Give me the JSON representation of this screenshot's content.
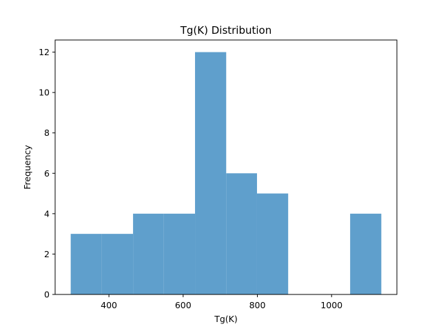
{
  "chart_data": {
    "type": "bar",
    "title": "Tg(K) Distribution",
    "xlabel": "Tg(K)",
    "ylabel": "Frequency",
    "bins": [
      {
        "start": 297,
        "end": 381,
        "count": 3
      },
      {
        "start": 381,
        "end": 465,
        "count": 3
      },
      {
        "start": 465,
        "end": 548,
        "count": 4
      },
      {
        "start": 548,
        "end": 632,
        "count": 4
      },
      {
        "start": 632,
        "end": 716,
        "count": 12
      },
      {
        "start": 716,
        "end": 799,
        "count": 6
      },
      {
        "start": 799,
        "end": 883,
        "count": 5
      },
      {
        "start": 883,
        "end": 967,
        "count": 0
      },
      {
        "start": 967,
        "end": 1050,
        "count": 0
      },
      {
        "start": 1050,
        "end": 1134,
        "count": 4
      }
    ],
    "xlim": [
      255,
      1176
    ],
    "ylim": [
      0,
      12.6
    ],
    "xticks": [
      400,
      600,
      800,
      1000
    ],
    "yticks": [
      0,
      2,
      4,
      6,
      8,
      10,
      12
    ],
    "bar_color": "#5f9fcc",
    "grid": false
  }
}
